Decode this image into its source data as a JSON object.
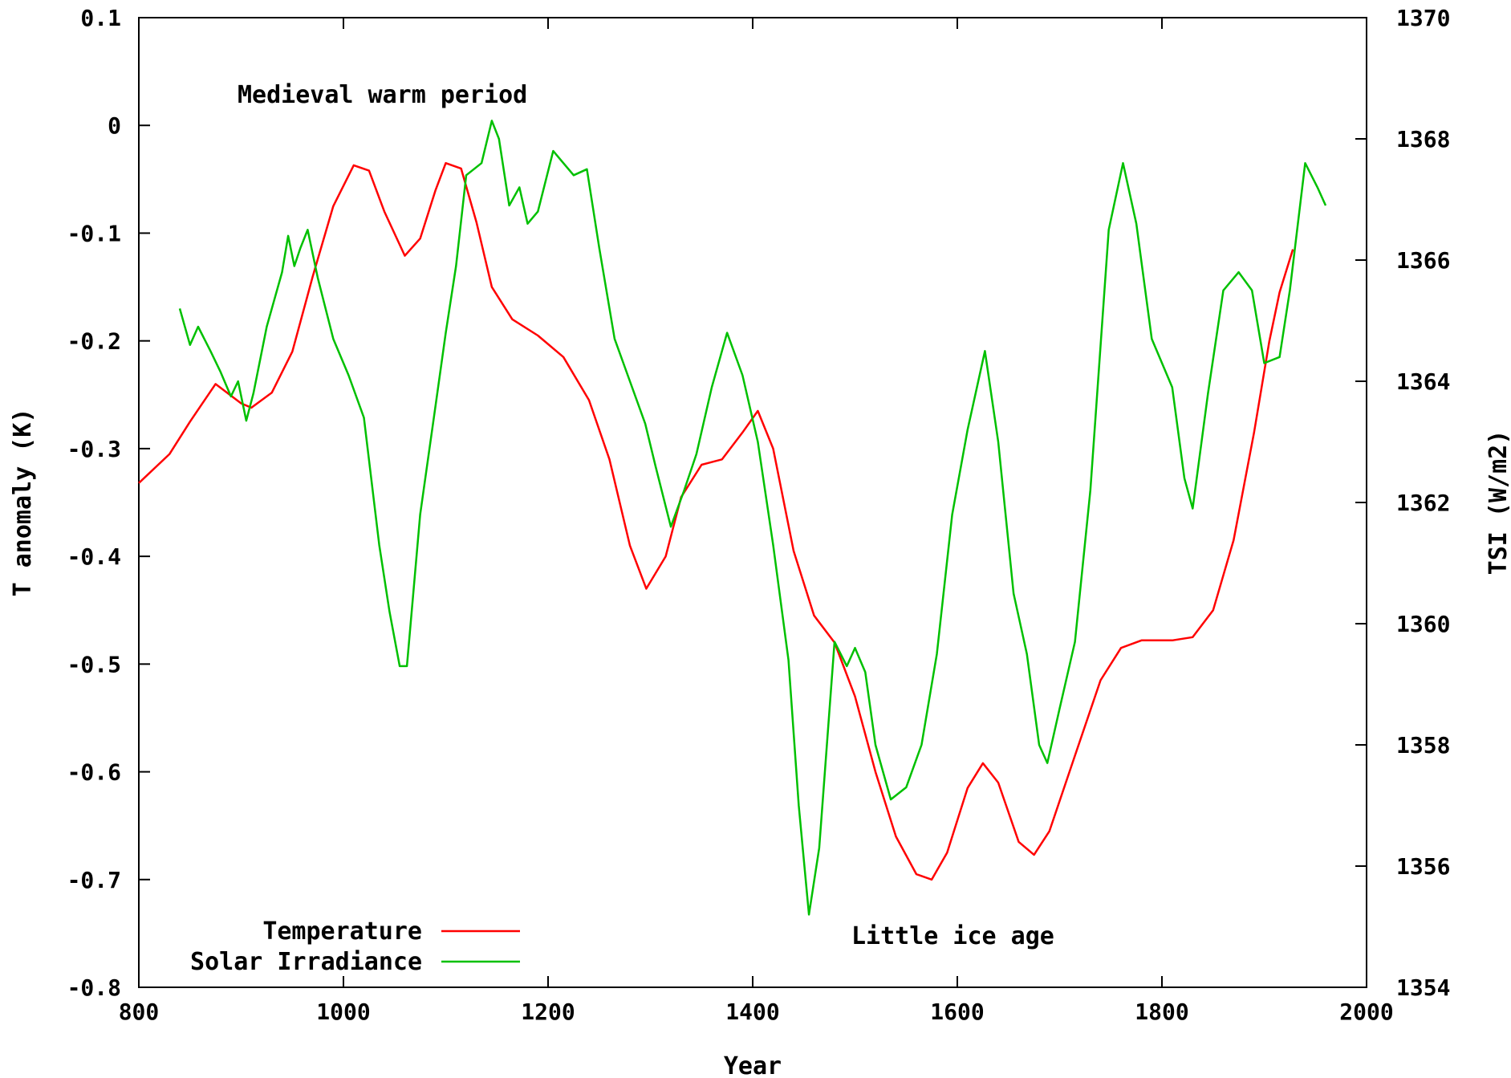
{
  "chart_data": {
    "type": "line",
    "xlabel": "Year",
    "ylabel": "T anomaly (K)",
    "y2label": "TSI (W/m2)",
    "xlim": [
      800,
      2000
    ],
    "ylim": [
      -0.8,
      0.1
    ],
    "y2lim": [
      1354,
      1370
    ],
    "x_ticks": [
      "800",
      "1000",
      "1200",
      "1400",
      "1600",
      "1800",
      "2000"
    ],
    "y_ticks": [
      "0.1",
      "0",
      "-0.1",
      "-0.2",
      "-0.3",
      "-0.4",
      "-0.5",
      "-0.6",
      "-0.7",
      "-0.8"
    ],
    "y2_ticks": [
      "1370",
      "1368",
      "1366",
      "1364",
      "1362",
      "1360",
      "1358",
      "1356",
      "1354"
    ],
    "grid": false,
    "legend_position": "bottom-left",
    "annotations": [
      {
        "text": "Medieval warm period",
        "x": 1030,
        "y": 0.03
      },
      {
        "text": "Little ice age",
        "x": 1600,
        "y": -0.735
      }
    ],
    "series": [
      {
        "name": "Temperature",
        "color": "#ff0000",
        "axis": "left",
        "points": [
          [
            800,
            -0.332
          ],
          [
            830,
            -0.305
          ],
          [
            850,
            -0.275
          ],
          [
            875,
            -0.24
          ],
          [
            900,
            -0.258
          ],
          [
            910,
            -0.262
          ],
          [
            930,
            -0.248
          ],
          [
            950,
            -0.21
          ],
          [
            970,
            -0.14
          ],
          [
            990,
            -0.075
          ],
          [
            1010,
            -0.037
          ],
          [
            1025,
            -0.042
          ],
          [
            1040,
            -0.08
          ],
          [
            1060,
            -0.121
          ],
          [
            1075,
            -0.105
          ],
          [
            1090,
            -0.06
          ],
          [
            1100,
            -0.035
          ],
          [
            1115,
            -0.04
          ],
          [
            1130,
            -0.09
          ],
          [
            1145,
            -0.15
          ],
          [
            1165,
            -0.18
          ],
          [
            1190,
            -0.195
          ],
          [
            1215,
            -0.215
          ],
          [
            1240,
            -0.255
          ],
          [
            1260,
            -0.31
          ],
          [
            1280,
            -0.39
          ],
          [
            1296,
            -0.43
          ],
          [
            1315,
            -0.4
          ],
          [
            1330,
            -0.345
          ],
          [
            1350,
            -0.315
          ],
          [
            1370,
            -0.31
          ],
          [
            1390,
            -0.285
          ],
          [
            1405,
            -0.265
          ],
          [
            1420,
            -0.3
          ],
          [
            1440,
            -0.395
          ],
          [
            1460,
            -0.455
          ],
          [
            1480,
            -0.48
          ],
          [
            1500,
            -0.53
          ],
          [
            1520,
            -0.6
          ],
          [
            1540,
            -0.66
          ],
          [
            1560,
            -0.695
          ],
          [
            1575,
            -0.7
          ],
          [
            1590,
            -0.675
          ],
          [
            1610,
            -0.615
          ],
          [
            1625,
            -0.592
          ],
          [
            1640,
            -0.61
          ],
          [
            1660,
            -0.665
          ],
          [
            1675,
            -0.677
          ],
          [
            1690,
            -0.655
          ],
          [
            1715,
            -0.585
          ],
          [
            1740,
            -0.515
          ],
          [
            1760,
            -0.485
          ],
          [
            1780,
            -0.478
          ],
          [
            1810,
            -0.478
          ],
          [
            1830,
            -0.475
          ],
          [
            1850,
            -0.45
          ],
          [
            1870,
            -0.385
          ],
          [
            1890,
            -0.285
          ],
          [
            1905,
            -0.2
          ],
          [
            1915,
            -0.155
          ],
          [
            1928,
            -0.115
          ]
        ]
      },
      {
        "name": "Solar Irradiance",
        "color": "#00c000",
        "axis": "right",
        "points": [
          [
            840,
            1365.2
          ],
          [
            850,
            1364.6
          ],
          [
            858,
            1364.9
          ],
          [
            870,
            1364.5
          ],
          [
            880,
            1364.15
          ],
          [
            890,
            1363.75
          ],
          [
            897,
            1364.0
          ],
          [
            905,
            1363.35
          ],
          [
            912,
            1363.8
          ],
          [
            925,
            1364.9
          ],
          [
            940,
            1365.8
          ],
          [
            946,
            1366.4
          ],
          [
            952,
            1365.9
          ],
          [
            958,
            1366.2
          ],
          [
            965,
            1366.5
          ],
          [
            975,
            1365.7
          ],
          [
            990,
            1364.7
          ],
          [
            1005,
            1364.1
          ],
          [
            1020,
            1363.4
          ],
          [
            1035,
            1361.3
          ],
          [
            1045,
            1360.2
          ],
          [
            1055,
            1359.3
          ],
          [
            1062,
            1359.3
          ],
          [
            1075,
            1361.8
          ],
          [
            1090,
            1363.6
          ],
          [
            1100,
            1364.8
          ],
          [
            1110,
            1365.9
          ],
          [
            1120,
            1367.4
          ],
          [
            1135,
            1367.6
          ],
          [
            1145,
            1368.3
          ],
          [
            1152,
            1368.0
          ],
          [
            1162,
            1366.9
          ],
          [
            1172,
            1367.2
          ],
          [
            1180,
            1366.6
          ],
          [
            1190,
            1366.8
          ],
          [
            1205,
            1367.8
          ],
          [
            1215,
            1367.6
          ],
          [
            1225,
            1367.4
          ],
          [
            1238,
            1367.5
          ],
          [
            1250,
            1366.2
          ],
          [
            1265,
            1364.7
          ],
          [
            1280,
            1364.0
          ],
          [
            1295,
            1363.3
          ],
          [
            1305,
            1362.6
          ],
          [
            1320,
            1361.6
          ],
          [
            1333,
            1362.2
          ],
          [
            1345,
            1362.8
          ],
          [
            1360,
            1363.9
          ],
          [
            1375,
            1364.8
          ],
          [
            1390,
            1364.1
          ],
          [
            1405,
            1363.0
          ],
          [
            1420,
            1361.3
          ],
          [
            1435,
            1359.4
          ],
          [
            1445,
            1357.0
          ],
          [
            1455,
            1355.2
          ],
          [
            1465,
            1356.3
          ],
          [
            1480,
            1359.7
          ],
          [
            1492,
            1359.3
          ],
          [
            1500,
            1359.6
          ],
          [
            1510,
            1359.2
          ],
          [
            1520,
            1358.0
          ],
          [
            1535,
            1357.1
          ],
          [
            1550,
            1357.3
          ],
          [
            1565,
            1358.0
          ],
          [
            1580,
            1359.5
          ],
          [
            1595,
            1361.8
          ],
          [
            1610,
            1363.2
          ],
          [
            1627,
            1364.5
          ],
          [
            1640,
            1363.0
          ],
          [
            1655,
            1360.5
          ],
          [
            1668,
            1359.5
          ],
          [
            1680,
            1358.0
          ],
          [
            1688,
            1357.7
          ],
          [
            1700,
            1358.6
          ],
          [
            1715,
            1359.7
          ],
          [
            1730,
            1362.2
          ],
          [
            1748,
            1366.5
          ],
          [
            1762,
            1367.6
          ],
          [
            1775,
            1366.6
          ],
          [
            1790,
            1364.7
          ],
          [
            1810,
            1363.9
          ],
          [
            1822,
            1362.4
          ],
          [
            1830,
            1361.9
          ],
          [
            1845,
            1363.8
          ],
          [
            1860,
            1365.5
          ],
          [
            1875,
            1365.8
          ],
          [
            1888,
            1365.5
          ],
          [
            1900,
            1364.3
          ],
          [
            1915,
            1364.4
          ],
          [
            1925,
            1365.5
          ],
          [
            1940,
            1367.6
          ],
          [
            1952,
            1367.2
          ],
          [
            1960,
            1366.9
          ]
        ]
      }
    ]
  }
}
